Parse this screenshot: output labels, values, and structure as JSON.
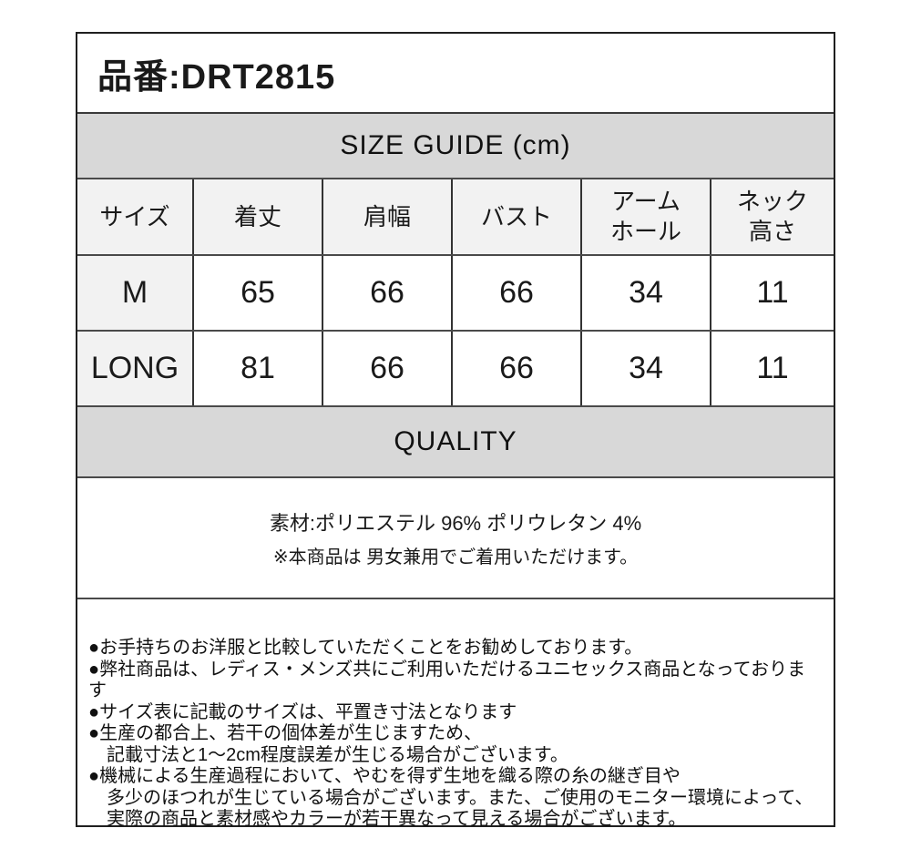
{
  "header": {
    "product_label": "品番:DRT2815"
  },
  "size_guide": {
    "title": "SIZE GUIDE (cm)"
  },
  "size_table": {
    "columns": [
      "サイズ",
      "着丈",
      "肩幅",
      "バスト",
      "アーム\nホール",
      "ネック\n高さ"
    ],
    "rows": [
      {
        "label": "M",
        "values": [
          "65",
          "66",
          "66",
          "34",
          "11"
        ]
      },
      {
        "label": "LONG",
        "values": [
          "81",
          "66",
          "66",
          "34",
          "11"
        ]
      }
    ]
  },
  "quality": {
    "title": "QUALITY",
    "material_line": "素材:ポリエステル 96%  ポリウレタン 4%",
    "unisex_line": "※本商品は 男女兼用でご着用いただけます。"
  },
  "notes": {
    "lines": [
      "●お手持ちのお洋服と比較していただくことをお勧めしております。",
      "●弊社商品は、レディス・メンズ共にご利用いただけるユニセックス商品となっております",
      "●サイズ表に記載のサイズは、平置き寸法となります",
      "●生産の都合上、若干の個体差が生じますため、",
      "　記載寸法と1～2cm程度誤差が生じる場合がございます。",
      "●機械による生産過程において、やむを得ず生地を織る際の糸の継ぎ目や",
      "　多少のほつれが生じている場合がございます。また、ご使用のモニター環境によって、",
      "　実際の商品と素材感やカラーが若干異なって見える場合がございます。"
    ]
  },
  "colors": {
    "band_gray": "#d8d8d8",
    "header_cell_gray": "#f2f2f2",
    "border_dark": "#333333",
    "border_mid": "#4a4a4a",
    "text": "#1a1a1a",
    "background": "#ffffff"
  }
}
